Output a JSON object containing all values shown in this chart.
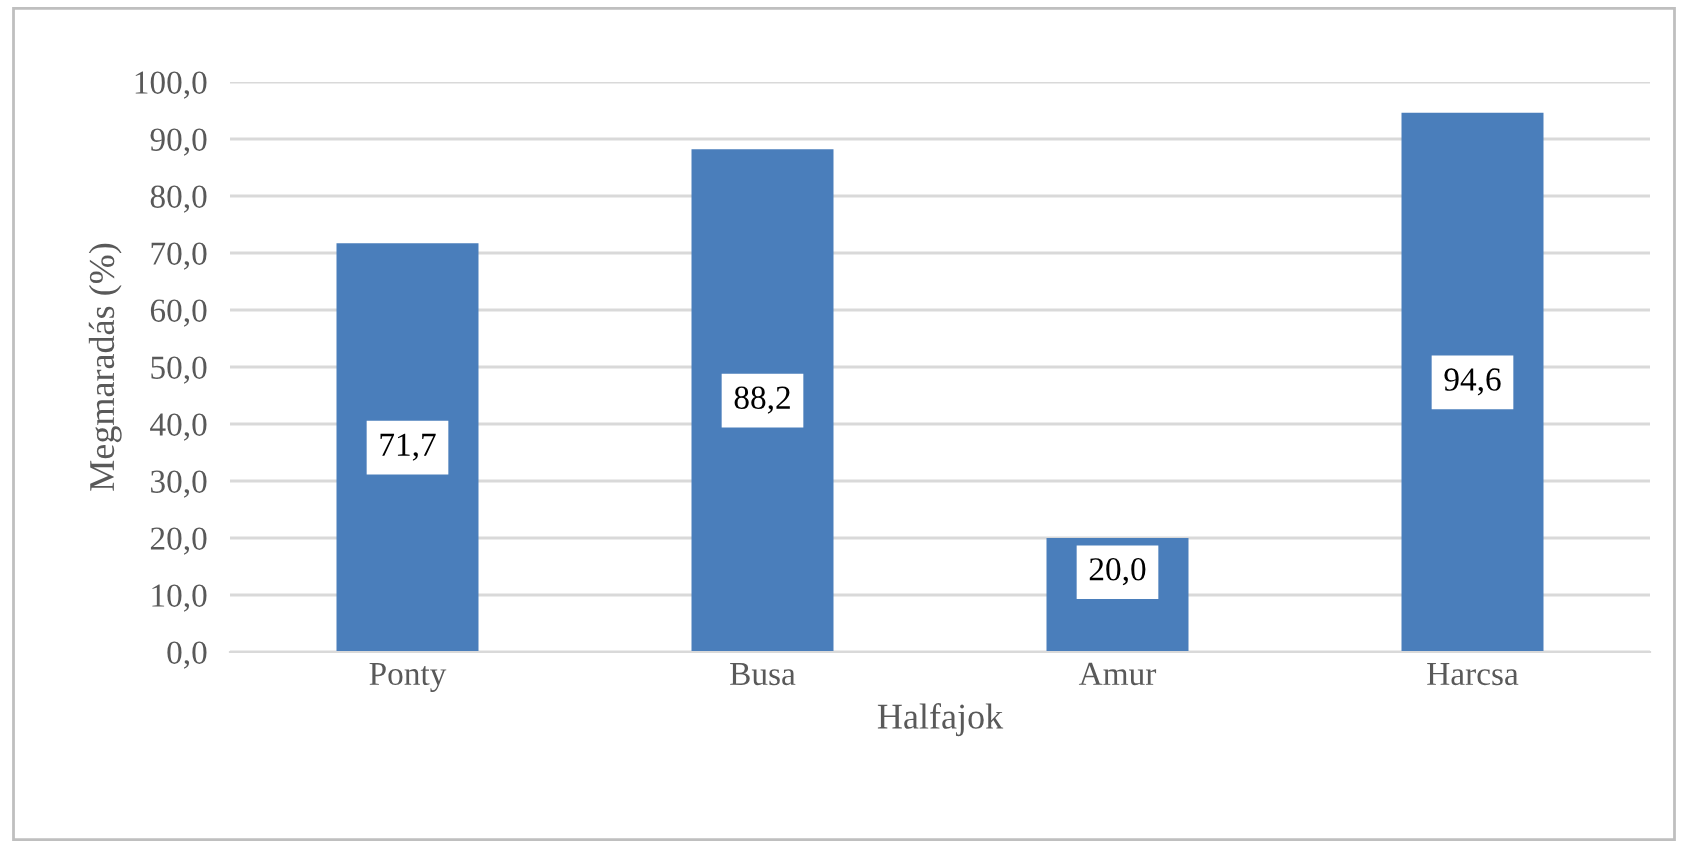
{
  "chart_data": {
    "type": "bar",
    "xlabel": "Halfajok",
    "ylabel": "Megmaradás (%)",
    "categories": [
      "Ponty",
      "Busa",
      "Amur",
      "Harcsa"
    ],
    "values": [
      71.7,
      88.2,
      20.0,
      94.6
    ],
    "value_labels": [
      "71,7",
      "88,2",
      "20,0",
      "94,6"
    ],
    "color": "#4a7ebb",
    "ylim": [
      0,
      100
    ],
    "yticks": [
      {
        "value": 0,
        "label": "0,0"
      },
      {
        "value": 10,
        "label": "10,0"
      },
      {
        "value": 20,
        "label": "20,0"
      },
      {
        "value": 30,
        "label": "30,0"
      },
      {
        "value": 40,
        "label": "40,0"
      },
      {
        "value": 50,
        "label": "50,0"
      },
      {
        "value": 60,
        "label": "60,0"
      },
      {
        "value": 70,
        "label": "70,0"
      },
      {
        "value": 80,
        "label": "80,0"
      },
      {
        "value": 90,
        "label": "90,0"
      },
      {
        "value": 100,
        "label": "100,0"
      }
    ],
    "grid": "y",
    "legend": false
  }
}
